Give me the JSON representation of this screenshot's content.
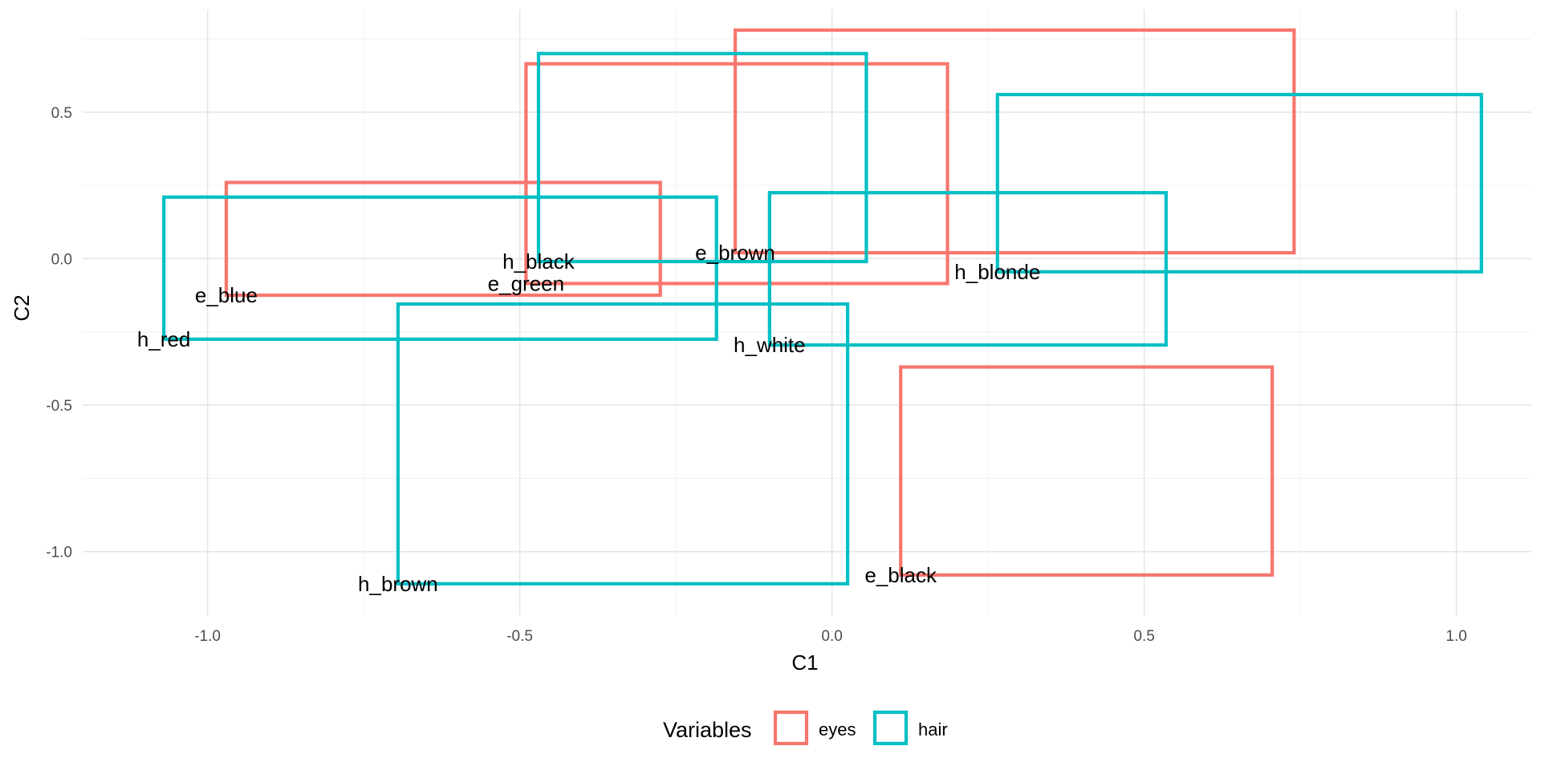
{
  "chart_data": {
    "type": "rect",
    "xlabel": "C1",
    "ylabel": "C2",
    "xlim": [
      -1.2,
      1.12
    ],
    "ylim": [
      -1.22,
      0.85
    ],
    "x_ticks": [
      -1.0,
      -0.5,
      0.0,
      0.5,
      1.0
    ],
    "x_tick_labels": [
      "-1.0",
      "-0.5",
      "0.0",
      "0.5",
      "1.0"
    ],
    "y_ticks": [
      -1.0,
      -0.5,
      0.0,
      0.5
    ],
    "y_tick_labels": [
      "-1.0",
      "-0.5",
      "0.0",
      "0.5"
    ],
    "grid": true,
    "legend": {
      "title": "Variables",
      "position": "bottom",
      "entries": [
        {
          "name": "eyes",
          "color": "#F8766D"
        },
        {
          "name": "hair",
          "color": "#00BFC4"
        }
      ]
    },
    "items": [
      {
        "label": "e_black",
        "group": "eyes",
        "xmin": 0.11,
        "xmax": 0.705,
        "ymin": -1.08,
        "ymax": -0.37,
        "label_x": 0.11,
        "label_y": -1.08
      },
      {
        "label": "e_blue",
        "group": "eyes",
        "xmin": -0.97,
        "xmax": -0.275,
        "ymin": -0.125,
        "ymax": 0.26,
        "label_x": -0.97,
        "label_y": -0.125
      },
      {
        "label": "e_brown",
        "group": "eyes",
        "xmin": -0.155,
        "xmax": 0.74,
        "ymin": 0.02,
        "ymax": 0.78,
        "label_x": -0.155,
        "label_y": 0.02
      },
      {
        "label": "e_green",
        "group": "eyes",
        "xmin": -0.49,
        "xmax": 0.185,
        "ymin": -0.085,
        "ymax": 0.665,
        "label_x": -0.49,
        "label_y": -0.085
      },
      {
        "label": "h_black",
        "group": "hair",
        "xmin": -0.47,
        "xmax": 0.055,
        "ymin": -0.01,
        "ymax": 0.7,
        "label_x": -0.47,
        "label_y": -0.01
      },
      {
        "label": "h_blonde",
        "group": "hair",
        "xmin": 0.265,
        "xmax": 1.04,
        "ymin": -0.045,
        "ymax": 0.56,
        "label_x": 0.265,
        "label_y": -0.045
      },
      {
        "label": "h_brown",
        "group": "hair",
        "xmin": -0.695,
        "xmax": 0.025,
        "ymin": -1.11,
        "ymax": -0.155,
        "label_x": -0.695,
        "label_y": -1.11
      },
      {
        "label": "h_red",
        "group": "hair",
        "xmin": -1.07,
        "xmax": -0.185,
        "ymin": -0.275,
        "ymax": 0.21,
        "label_x": -1.07,
        "label_y": -0.275
      },
      {
        "label": "h_white",
        "group": "hair",
        "xmin": -0.1,
        "xmax": 0.535,
        "ymin": -0.295,
        "ymax": 0.225,
        "label_x": -0.1,
        "label_y": -0.295
      }
    ]
  }
}
